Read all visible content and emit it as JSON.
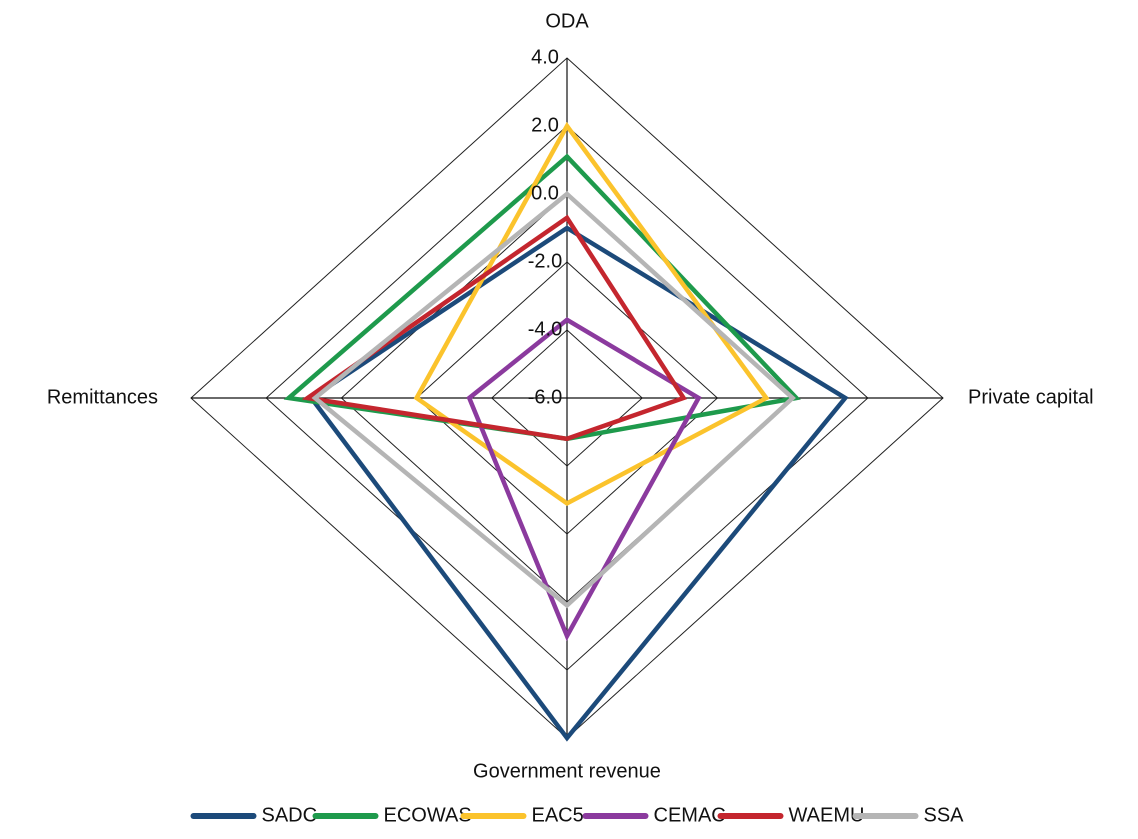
{
  "chart_data": {
    "type": "radar",
    "categories": [
      "ODA",
      "Private capital",
      "Government revenue",
      "Remittances"
    ],
    "ylim": [
      -6,
      4
    ],
    "yticks": [
      {
        "value": 4,
        "label": "4.0"
      },
      {
        "value": 2,
        "label": "2.0"
      },
      {
        "value": 0,
        "label": "0.0"
      },
      {
        "value": -2,
        "label": "-2.0"
      },
      {
        "value": -4,
        "label": "-4.0"
      },
      {
        "value": -6,
        "label": "-6.0"
      }
    ],
    "grid": true,
    "series": [
      {
        "name": "SADC",
        "color": "#1c4a7a",
        "values": [
          -1.0,
          1.4,
          4.0,
          0.8
        ]
      },
      {
        "name": "ECOWAS",
        "color": "#1e9a4c",
        "values": [
          1.1,
          0.1,
          -4.8,
          1.4
        ]
      },
      {
        "name": "EAC5",
        "color": "#fbc32c",
        "values": [
          2.0,
          -0.7,
          -2.9,
          -2.0
        ]
      },
      {
        "name": "CEMAC",
        "color": "#8b3a9e",
        "values": [
          -3.7,
          -2.5,
          1.0,
          -3.4
        ]
      },
      {
        "name": "WAEMU",
        "color": "#c4262e",
        "values": [
          -0.7,
          -2.9,
          -4.8,
          0.9
        ]
      },
      {
        "name": "SSA",
        "color": "#b5b5b5",
        "values": [
          0.0,
          0.0,
          0.1,
          0.7
        ]
      }
    ]
  }
}
